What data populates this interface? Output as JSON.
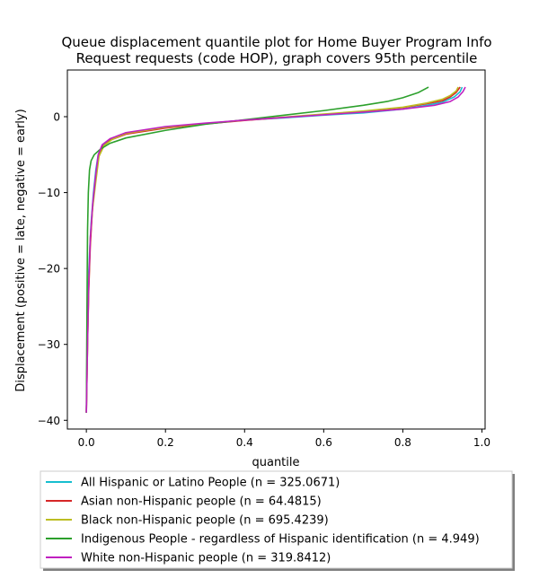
{
  "chart_data": {
    "type": "line",
    "title": "Queue displacement quantile plot for Home Buyer Program Info\nRequest  requests (code HOP), graph covers 95th percentile",
    "xlabel": "quantile",
    "ylabel": "Displacement (positive = late, negative = early)",
    "xlim": [
      -0.048,
      1.008
    ],
    "ylim": [
      -41.15,
      6.15
    ],
    "xticks": [
      0.0,
      0.2,
      0.4,
      0.6,
      0.8,
      1.0
    ],
    "xtick_labels": [
      "0.0",
      "0.2",
      "0.4",
      "0.6",
      "0.8",
      "1.0"
    ],
    "yticks": [
      0,
      -10,
      -20,
      -30,
      -40
    ],
    "ytick_labels": [
      "0",
      "−10",
      "−20",
      "−30",
      "−40"
    ],
    "grid": false,
    "legend_position": "below",
    "series": [
      {
        "name": "All Hispanic or Latino People (n = 325.0671)",
        "color": "#17becf",
        "points": [
          [
            0.0,
            -39
          ],
          [
            0.002,
            -30
          ],
          [
            0.004,
            -23
          ],
          [
            0.008,
            -18
          ],
          [
            0.012,
            -14
          ],
          [
            0.018,
            -10
          ],
          [
            0.024,
            -7
          ],
          [
            0.03,
            -5
          ],
          [
            0.04,
            -3.8
          ],
          [
            0.06,
            -3.0
          ],
          [
            0.1,
            -2.2
          ],
          [
            0.2,
            -1.4
          ],
          [
            0.3,
            -0.9
          ],
          [
            0.4,
            -0.45
          ],
          [
            0.5,
            -0.15
          ],
          [
            0.6,
            0.2
          ],
          [
            0.7,
            0.5
          ],
          [
            0.8,
            1.0
          ],
          [
            0.86,
            1.5
          ],
          [
            0.9,
            1.9
          ],
          [
            0.93,
            2.6
          ],
          [
            0.945,
            3.3
          ],
          [
            0.95,
            3.9
          ]
        ]
      },
      {
        "name": "Asian non-Hispanic people (n = 64.4815)",
        "color": "#d62728",
        "points": [
          [
            0.0,
            -39
          ],
          [
            0.003,
            -30
          ],
          [
            0.006,
            -23
          ],
          [
            0.01,
            -17
          ],
          [
            0.015,
            -12.5
          ],
          [
            0.022,
            -8.5
          ],
          [
            0.03,
            -5.5
          ],
          [
            0.04,
            -4.0
          ],
          [
            0.06,
            -3.1
          ],
          [
            0.1,
            -2.3
          ],
          [
            0.2,
            -1.5
          ],
          [
            0.3,
            -0.95
          ],
          [
            0.4,
            -0.5
          ],
          [
            0.5,
            -0.1
          ],
          [
            0.6,
            0.3
          ],
          [
            0.7,
            0.7
          ],
          [
            0.8,
            1.2
          ],
          [
            0.86,
            1.7
          ],
          [
            0.9,
            2.1
          ],
          [
            0.92,
            2.6
          ],
          [
            0.935,
            3.2
          ],
          [
            0.945,
            3.9
          ]
        ]
      },
      {
        "name": "Black non-Hispanic people (n = 695.4239)",
        "color": "#bcbd22",
        "points": [
          [
            0.0,
            -39
          ],
          [
            0.003,
            -30
          ],
          [
            0.006,
            -22
          ],
          [
            0.01,
            -16
          ],
          [
            0.016,
            -12
          ],
          [
            0.024,
            -8.5
          ],
          [
            0.032,
            -5.2
          ],
          [
            0.045,
            -3.8
          ],
          [
            0.065,
            -3.0
          ],
          [
            0.1,
            -2.2
          ],
          [
            0.2,
            -1.4
          ],
          [
            0.3,
            -0.9
          ],
          [
            0.4,
            -0.45
          ],
          [
            0.5,
            -0.05
          ],
          [
            0.6,
            0.35
          ],
          [
            0.7,
            0.75
          ],
          [
            0.8,
            1.25
          ],
          [
            0.86,
            1.8
          ],
          [
            0.9,
            2.3
          ],
          [
            0.92,
            2.8
          ],
          [
            0.935,
            3.4
          ],
          [
            0.94,
            3.9
          ]
        ]
      },
      {
        "name": "Indigenous People - regardless of Hispanic identification (n = 4.949)",
        "color": "#2ca02c",
        "points": [
          [
            0.0,
            -39
          ],
          [
            0.001,
            -30
          ],
          [
            0.002,
            -22
          ],
          [
            0.003,
            -15
          ],
          [
            0.005,
            -10
          ],
          [
            0.008,
            -7
          ],
          [
            0.012,
            -5.8
          ],
          [
            0.02,
            -5.0
          ],
          [
            0.035,
            -4.3
          ],
          [
            0.06,
            -3.5
          ],
          [
            0.1,
            -2.8
          ],
          [
            0.2,
            -1.8
          ],
          [
            0.3,
            -1.0
          ],
          [
            0.4,
            -0.4
          ],
          [
            0.5,
            0.2
          ],
          [
            0.6,
            0.8
          ],
          [
            0.7,
            1.5
          ],
          [
            0.76,
            2.0
          ],
          [
            0.8,
            2.5
          ],
          [
            0.84,
            3.2
          ],
          [
            0.865,
            3.9
          ]
        ]
      },
      {
        "name": "White non-Hispanic people (n = 319.8412)",
        "color": "#c020c0",
        "points": [
          [
            0.0,
            -39
          ],
          [
            0.003,
            -30
          ],
          [
            0.006,
            -22
          ],
          [
            0.01,
            -16
          ],
          [
            0.016,
            -11.5
          ],
          [
            0.024,
            -7.5
          ],
          [
            0.03,
            -5.0
          ],
          [
            0.04,
            -3.7
          ],
          [
            0.06,
            -2.9
          ],
          [
            0.1,
            -2.1
          ],
          [
            0.2,
            -1.3
          ],
          [
            0.3,
            -0.85
          ],
          [
            0.4,
            -0.45
          ],
          [
            0.5,
            -0.1
          ],
          [
            0.6,
            0.25
          ],
          [
            0.7,
            0.6
          ],
          [
            0.8,
            1.0
          ],
          [
            0.88,
            1.5
          ],
          [
            0.92,
            2.0
          ],
          [
            0.94,
            2.6
          ],
          [
            0.952,
            3.3
          ],
          [
            0.958,
            3.9
          ]
        ]
      }
    ]
  }
}
